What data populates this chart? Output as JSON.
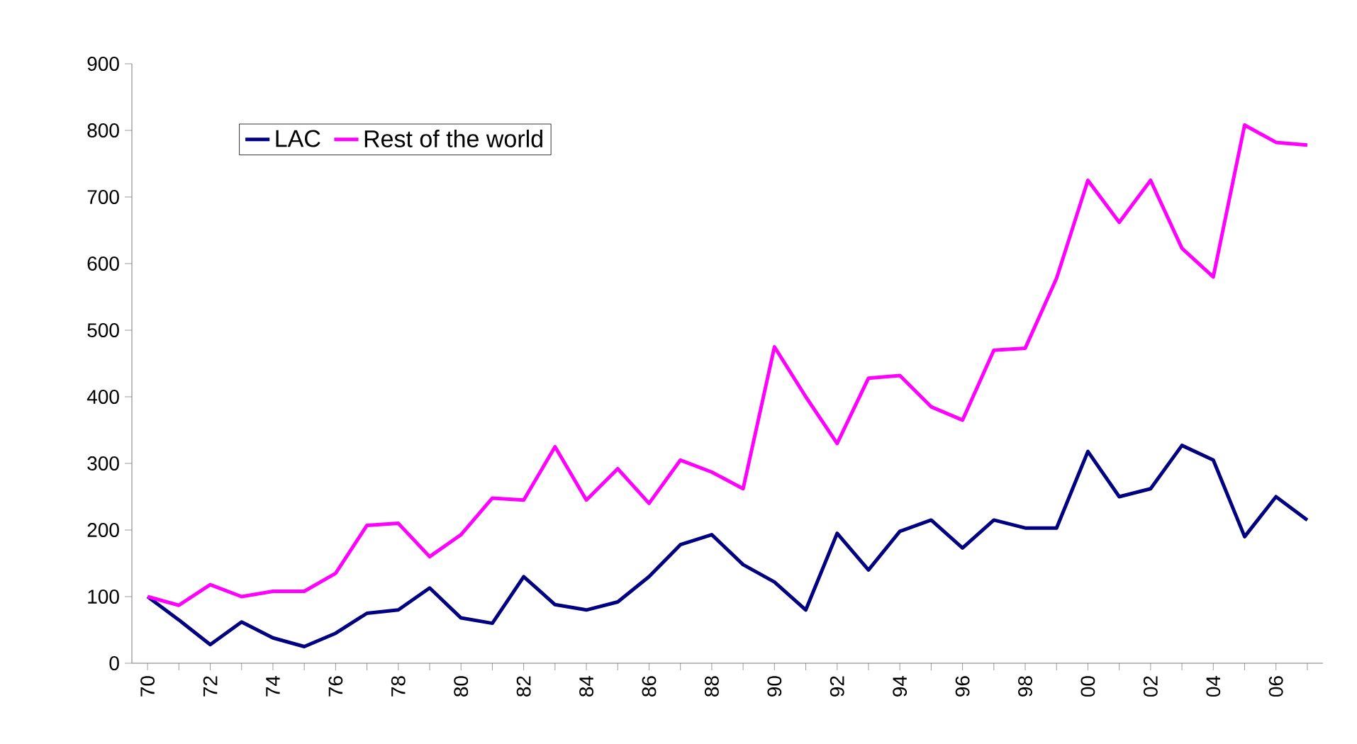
{
  "chart_data": {
    "type": "line",
    "categories": [
      "70",
      null,
      "72",
      null,
      "74",
      null,
      "76",
      null,
      "78",
      null,
      "80",
      null,
      "82",
      null,
      "84",
      null,
      "86",
      null,
      "88",
      null,
      "90",
      null,
      "92",
      null,
      "94",
      null,
      "96",
      null,
      "98",
      null,
      "00",
      null,
      "02",
      null,
      "04",
      null,
      "06",
      null
    ],
    "series": [
      {
        "name": "LAC",
        "color": "#000080",
        "values": [
          100,
          65,
          28,
          62,
          38,
          25,
          45,
          75,
          80,
          113,
          68,
          60,
          130,
          88,
          80,
          92,
          130,
          178,
          193,
          148,
          122,
          80,
          195,
          140,
          198,
          215,
          173,
          215,
          203,
          203,
          318,
          250,
          262,
          327,
          305,
          190,
          250,
          215
        ]
      },
      {
        "name": "Rest of the world",
        "color": "#ff00ff",
        "values": [
          100,
          87,
          118,
          100,
          108,
          108,
          135,
          207,
          210,
          160,
          193,
          248,
          245,
          325,
          245,
          292,
          240,
          305,
          287,
          262,
          475,
          400,
          330,
          428,
          432,
          385,
          365,
          470,
          473,
          578,
          725,
          662,
          725,
          623,
          580,
          808,
          782,
          778
        ]
      }
    ],
    "ylim": [
      0,
      900
    ],
    "yticks": [
      0,
      100,
      200,
      300,
      400,
      500,
      600,
      700,
      800,
      900
    ],
    "legend": "top left",
    "marker": "none",
    "line_style": "solid"
  }
}
